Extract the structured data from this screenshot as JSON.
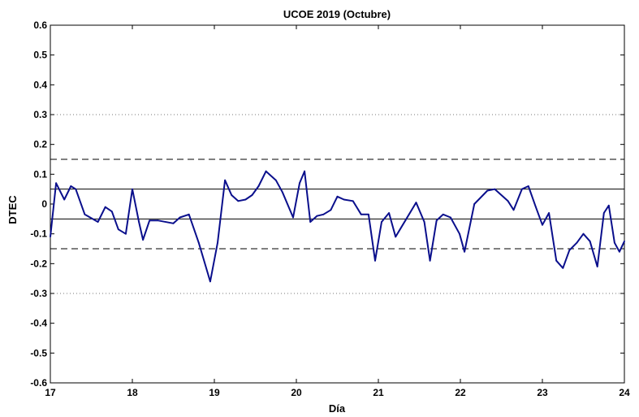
{
  "chart_data": {
    "type": "line",
    "title": "UCOE 2019 (Octubre)",
    "xlabel": "Día",
    "ylabel": "DTEC",
    "xlim": [
      17,
      24
    ],
    "ylim": [
      -0.6,
      0.6
    ],
    "xticks": [
      "17",
      "18",
      "19",
      "20",
      "21",
      "22",
      "23",
      "24"
    ],
    "yticks": [
      "-0.6",
      "-0.5",
      "-0.4",
      "-0.3",
      "-0.2",
      "-0.1",
      "0",
      "0.1",
      "0.2",
      "0.3",
      "0.4",
      "0.5",
      "0.6"
    ],
    "grid": false,
    "series_color": "#0a0f8c",
    "series": [
      {
        "x": [
          17.0,
          17.07,
          17.17,
          17.25,
          17.31,
          17.42,
          17.58,
          17.67,
          17.75,
          17.83,
          17.92,
          18.0,
          18.08,
          18.13,
          18.21,
          18.31,
          18.5,
          18.58,
          18.69,
          18.81,
          18.95,
          19.04,
          19.13,
          19.21,
          19.29,
          19.38,
          19.46,
          19.54,
          19.63,
          19.75,
          19.83,
          19.96,
          20.04,
          20.1,
          20.17,
          20.25,
          20.33,
          20.42,
          20.5,
          20.58,
          20.69,
          20.79,
          20.88,
          20.96,
          21.04,
          21.13,
          21.21,
          21.33,
          21.46,
          21.56,
          21.63,
          21.71,
          21.79,
          21.88,
          21.99,
          22.05,
          22.17,
          22.33,
          22.42,
          22.58,
          22.65,
          22.75,
          22.83,
          22.92,
          23.0,
          23.08,
          23.17,
          23.25,
          23.33,
          23.42,
          23.5,
          23.58,
          23.67,
          23.75,
          23.81,
          23.88,
          23.94,
          24.0
        ],
        "y": [
          -0.11,
          0.07,
          0.015,
          0.06,
          0.05,
          -0.035,
          -0.06,
          -0.01,
          -0.025,
          -0.085,
          -0.1,
          0.05,
          -0.06,
          -0.12,
          -0.055,
          -0.055,
          -0.065,
          -0.045,
          -0.035,
          -0.13,
          -0.26,
          -0.13,
          0.08,
          0.03,
          0.01,
          0.015,
          0.03,
          0.06,
          0.11,
          0.08,
          0.04,
          -0.045,
          0.07,
          0.11,
          -0.06,
          -0.04,
          -0.035,
          -0.02,
          0.025,
          0.015,
          0.01,
          -0.035,
          -0.035,
          -0.19,
          -0.06,
          -0.03,
          -0.11,
          -0.055,
          0.005,
          -0.06,
          -0.19,
          -0.055,
          -0.035,
          -0.045,
          -0.1,
          -0.16,
          0.0,
          0.045,
          0.05,
          0.01,
          -0.02,
          0.05,
          0.06,
          -0.01,
          -0.07,
          -0.03,
          -0.19,
          -0.215,
          -0.155,
          -0.13,
          -0.1,
          -0.125,
          -0.21,
          -0.03,
          -0.005,
          -0.13,
          -0.16,
          -0.125
        ]
      }
    ],
    "reference_lines": [
      {
        "y": 0.05,
        "style": "solid"
      },
      {
        "y": -0.05,
        "style": "solid"
      },
      {
        "y": 0.15,
        "style": "dashed"
      },
      {
        "y": -0.15,
        "style": "dashed"
      },
      {
        "y": 0.3,
        "style": "dotted"
      },
      {
        "y": -0.3,
        "style": "dotted"
      }
    ]
  }
}
